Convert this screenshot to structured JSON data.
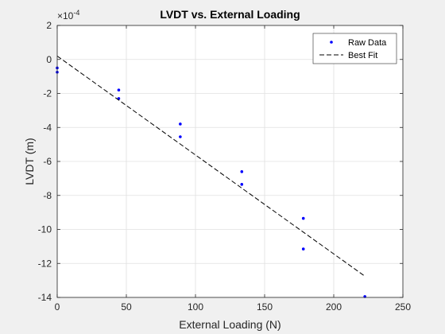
{
  "chart_data": {
    "type": "scatter",
    "title": "LVDT vs. External Loading",
    "xlabel": "External Loading (N)",
    "ylabel": "LVDT (m)",
    "exponent_label": "×10",
    "exponent_power": "-4",
    "xlim": [
      0,
      250
    ],
    "ylim": [
      -14,
      2
    ],
    "y_unit_scale": 0.0001,
    "xticks": [
      0,
      50,
      100,
      150,
      200,
      250
    ],
    "yticks": [
      -14,
      -12,
      -10,
      -8,
      -6,
      -4,
      -2,
      0,
      2
    ],
    "grid": true,
    "legend_position": "top-right",
    "series": [
      {
        "name": "Raw Data",
        "style": "points",
        "color": "#0000ff",
        "points": [
          [
            0,
            -0.5
          ],
          [
            0,
            -0.75
          ],
          [
            44.5,
            -1.8
          ],
          [
            44.5,
            -2.3
          ],
          [
            89,
            -3.8
          ],
          [
            89,
            -4.55
          ],
          [
            133.5,
            -6.6
          ],
          [
            133.5,
            -7.35
          ],
          [
            178,
            -9.35
          ],
          [
            178,
            -11.15
          ],
          [
            222.5,
            -13.95
          ]
        ]
      },
      {
        "name": "Best Fit",
        "style": "dashed-line",
        "color": "#000000",
        "points": [
          [
            0,
            0.2
          ],
          [
            222.5,
            -12.75
          ]
        ]
      }
    ]
  }
}
